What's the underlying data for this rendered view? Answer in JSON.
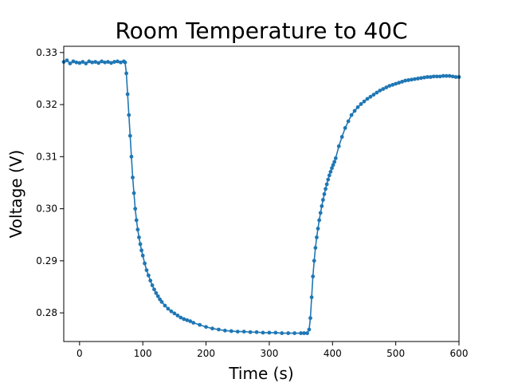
{
  "chart_data": {
    "type": "line",
    "title": "Room Temperature to 40C",
    "xlabel": "Time (s)",
    "ylabel": "Voltage (V)",
    "xlim": [
      -25,
      600
    ],
    "ylim": [
      0.2745,
      0.3312
    ],
    "xticks": [
      0,
      100,
      200,
      300,
      400,
      500,
      600
    ],
    "yticks": [
      0.28,
      0.29,
      0.3,
      0.31,
      0.32,
      0.33
    ],
    "ytick_labels": [
      "0.28",
      "0.29",
      "0.30",
      "0.31",
      "0.32",
      "0.33"
    ],
    "grid": false,
    "legend": "none",
    "series_color": "#1f77b4",
    "series": [
      {
        "x": [
          -25,
          -20,
          -15,
          -10,
          -5,
          0,
          5,
          10,
          15,
          20,
          25,
          30,
          35,
          40,
          45,
          50,
          55,
          60,
          65,
          70,
          72,
          74,
          76,
          78,
          80,
          82,
          84,
          86,
          88,
          90,
          92,
          94,
          96,
          98,
          100,
          103,
          106,
          109,
          112,
          115,
          118,
          121,
          124,
          127,
          130,
          135,
          140,
          145,
          150,
          155,
          160,
          165,
          170,
          175,
          180,
          190,
          200,
          210,
          220,
          230,
          240,
          250,
          260,
          270,
          280,
          290,
          300,
          310,
          320,
          330,
          340,
          350,
          355,
          360,
          363,
          365,
          367,
          369,
          371,
          373,
          375,
          377,
          379,
          381,
          383,
          385,
          387,
          389,
          391,
          393,
          395,
          397,
          399,
          401,
          403,
          405,
          410,
          415,
          420,
          425,
          430,
          435,
          440,
          445,
          450,
          455,
          460,
          465,
          470,
          475,
          480,
          485,
          490,
          495,
          500,
          505,
          510,
          515,
          520,
          525,
          530,
          535,
          540,
          545,
          550,
          555,
          560,
          565,
          570,
          575,
          580,
          585,
          590,
          595,
          600
        ],
        "y": [
          0.3282,
          0.3285,
          0.3279,
          0.3283,
          0.3281,
          0.328,
          0.3282,
          0.3279,
          0.3283,
          0.3281,
          0.3282,
          0.328,
          0.3283,
          0.3281,
          0.3282,
          0.328,
          0.3282,
          0.3283,
          0.3281,
          0.3283,
          0.3281,
          0.326,
          0.322,
          0.318,
          0.314,
          0.31,
          0.306,
          0.303,
          0.3,
          0.2978,
          0.296,
          0.2945,
          0.2932,
          0.292,
          0.291,
          0.2895,
          0.2882,
          0.2872,
          0.2862,
          0.2853,
          0.2845,
          0.2838,
          0.2832,
          0.2826,
          0.2821,
          0.2814,
          0.2808,
          0.2803,
          0.2799,
          0.2795,
          0.2791,
          0.2788,
          0.2786,
          0.2784,
          0.2781,
          0.2777,
          0.2773,
          0.277,
          0.2768,
          0.2766,
          0.2765,
          0.2764,
          0.2764,
          0.2763,
          0.2763,
          0.2762,
          0.2762,
          0.2762,
          0.2761,
          0.2761,
          0.2761,
          0.2761,
          0.2761,
          0.2761,
          0.2768,
          0.279,
          0.283,
          0.287,
          0.29,
          0.2925,
          0.2945,
          0.2962,
          0.2978,
          0.2992,
          0.3005,
          0.3017,
          0.3028,
          0.3038,
          0.3047,
          0.3056,
          0.3064,
          0.3071,
          0.3078,
          0.3084,
          0.309,
          0.3097,
          0.312,
          0.3138,
          0.3155,
          0.3168,
          0.318,
          0.3188,
          0.3195,
          0.3201,
          0.3206,
          0.3211,
          0.3215,
          0.3219,
          0.3223,
          0.3227,
          0.323,
          0.3233,
          0.3236,
          0.3238,
          0.324,
          0.3242,
          0.3244,
          0.3246,
          0.3247,
          0.3248,
          0.3249,
          0.325,
          0.3251,
          0.3252,
          0.3253,
          0.3253,
          0.3254,
          0.3254,
          0.3254,
          0.3255,
          0.3255,
          0.3255,
          0.3254,
          0.3253,
          0.3253
        ]
      }
    ]
  }
}
